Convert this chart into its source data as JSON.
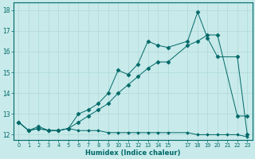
{
  "background_color": "#c8eaea",
  "grid_color": "#b0d8d8",
  "line_color": "#006868",
  "xlabel": "Humidex (Indice chaleur)",
  "xlim": [
    -0.5,
    23.5
  ],
  "ylim": [
    11.75,
    18.35
  ],
  "yticks": [
    12,
    13,
    14,
    15,
    16,
    17,
    18
  ],
  "xtick_positions": [
    0,
    1,
    2,
    3,
    4,
    5,
    6,
    7,
    8,
    9,
    10,
    11,
    12,
    13,
    14,
    15,
    17,
    18,
    19,
    20,
    21,
    22,
    23
  ],
  "xtick_labels": [
    "0",
    "1",
    "2",
    "3",
    "4",
    "5",
    "6",
    "7",
    "8",
    "9",
    "10",
    "11",
    "12",
    "13",
    "14",
    "15",
    "17",
    "18",
    "19",
    "20",
    "21",
    "22",
    "23"
  ],
  "series1_x": [
    0,
    1,
    2,
    3,
    4,
    5,
    6,
    7,
    8,
    9,
    10,
    11,
    12,
    13,
    14,
    15,
    17,
    18,
    19,
    20,
    21,
    22,
    23
  ],
  "series1_y": [
    12.6,
    12.2,
    12.3,
    12.2,
    12.2,
    12.3,
    12.2,
    12.2,
    12.2,
    12.1,
    12.1,
    12.1,
    12.1,
    12.1,
    12.1,
    12.1,
    12.1,
    12.0,
    12.0,
    12.0,
    12.0,
    12.0,
    11.9
  ],
  "series2_x": [
    0,
    1,
    2,
    3,
    4,
    5,
    6,
    7,
    8,
    9,
    10,
    11,
    12,
    13,
    14,
    15,
    17,
    18,
    19,
    20,
    22,
    23
  ],
  "series2_y": [
    12.6,
    12.2,
    12.3,
    12.2,
    12.2,
    12.3,
    12.6,
    12.9,
    13.2,
    13.5,
    14.0,
    14.4,
    14.8,
    15.2,
    15.5,
    15.5,
    16.3,
    16.5,
    16.8,
    16.8,
    12.9,
    12.9
  ],
  "series3_x": [
    0,
    1,
    2,
    3,
    4,
    5,
    6,
    7,
    8,
    9,
    10,
    11,
    12,
    13,
    14,
    15,
    17,
    18,
    19,
    20,
    22,
    23
  ],
  "series3_y": [
    12.6,
    12.2,
    12.4,
    12.2,
    12.2,
    12.3,
    13.0,
    13.2,
    13.5,
    14.0,
    15.1,
    14.9,
    15.4,
    16.5,
    16.3,
    16.2,
    16.5,
    17.9,
    16.65,
    15.75,
    15.75,
    12.0
  ]
}
